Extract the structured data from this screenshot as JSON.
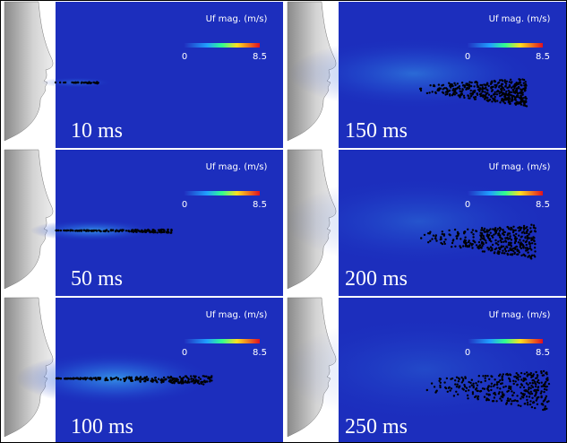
{
  "panels": [
    {
      "time": "10 ms",
      "colorbar": {
        "title": "Uf mag. (m/s)",
        "min": 0,
        "max": 8.5
      }
    },
    {
      "time": "50 ms",
      "colorbar": {
        "title": "Uf mag. (m/s)",
        "min": 0,
        "max": 8.5
      }
    },
    {
      "time": "100 ms",
      "colorbar": {
        "title": "Uf mag. (m/s)",
        "min": 0,
        "max": 8.5
      }
    },
    {
      "time": "150 ms",
      "colorbar": {
        "title": "Uf mag. (m/s)",
        "min": 0,
        "max": 8.5
      }
    },
    {
      "time": "200 ms",
      "colorbar": {
        "title": "Uf mag. (m/s)",
        "min": 0,
        "max": 8.5
      }
    },
    {
      "time": "250 ms",
      "colorbar": {
        "title": "Uf mag. (m/s)",
        "min": 0,
        "max": 8.5
      }
    }
  ]
}
